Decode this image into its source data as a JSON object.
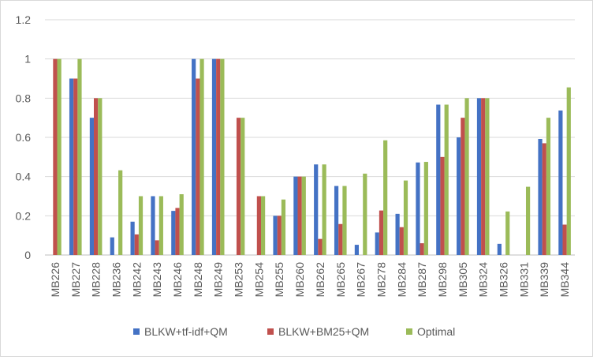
{
  "chart_data": {
    "type": "bar",
    "title": "",
    "xlabel": "",
    "ylabel": "",
    "ylim": [
      0,
      1.2
    ],
    "yticks": [
      "0",
      "0.2",
      "0.4",
      "0.6",
      "0.8",
      "1",
      "1.2"
    ],
    "grid": true,
    "legend_position": "bottom",
    "categories": [
      "MB226",
      "MB227",
      "MB228",
      "MB236",
      "MB242",
      "MB243",
      "MB246",
      "MB248",
      "MB249",
      "MB253",
      "MB254",
      "MB255",
      "MB260",
      "MB262",
      "MB265",
      "MB267",
      "MB278",
      "MB284",
      "MB287",
      "MB298",
      "MB305",
      "MB324",
      "MB326",
      "MB331",
      "MB339",
      "MB344"
    ],
    "series": [
      {
        "name": "BLKW+tf-idf+QM",
        "color": "#4472c4",
        "values": [
          0,
          0.9,
          0.7,
          0.09,
          0.17,
          0.3,
          0.225,
          1,
          1,
          0,
          0,
          0.2,
          0.4,
          0.462,
          0.352,
          0.052,
          0.115,
          0.21,
          0.472,
          0.767,
          0.6,
          0.8,
          0.057,
          0,
          0.592,
          0.737
        ]
      },
      {
        "name": "BLKW+BM25+QM",
        "color": "#c0504d",
        "values": [
          1,
          0.9,
          0.8,
          0,
          0.105,
          0.075,
          0.24,
          0.9,
          1,
          0.7,
          0.3,
          0.2,
          0.4,
          0.082,
          0.158,
          0,
          0.227,
          0.142,
          0.06,
          0.5,
          0.7,
          0.8,
          0,
          0,
          0.57,
          0.155
        ]
      },
      {
        "name": "Optimal",
        "color": "#9bbb59",
        "values": [
          1,
          1,
          0.8,
          0.432,
          0.3,
          0.3,
          0.31,
          1,
          1,
          0.7,
          0.3,
          0.283,
          0.4,
          0.462,
          0.352,
          0.415,
          0.585,
          0.38,
          0.475,
          0.767,
          0.8,
          0.8,
          0.222,
          0.348,
          0.7,
          0.855
        ]
      }
    ]
  }
}
